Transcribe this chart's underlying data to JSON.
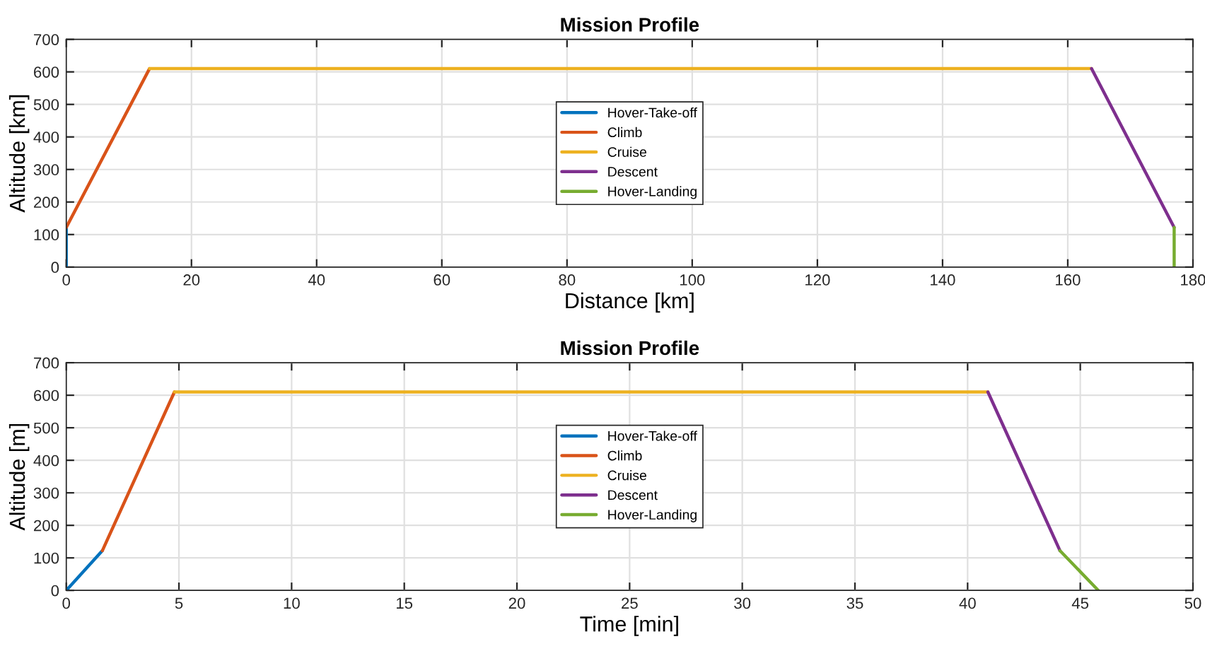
{
  "chart_data": [
    {
      "type": "line",
      "title": "Mission Profile",
      "xlabel": "Distance [km]",
      "ylabel": "Altitude [km]",
      "xlim": [
        0,
        180
      ],
      "xticks": [
        0,
        20,
        40,
        60,
        80,
        100,
        120,
        140,
        160,
        180
      ],
      "ylim": [
        0,
        700
      ],
      "yticks": [
        0,
        100,
        200,
        300,
        400,
        500,
        600,
        700
      ],
      "grid": true,
      "legend": "center",
      "series": [
        {
          "name": "Hover-Take-off",
          "color": "#0072bd",
          "x": [
            0,
            0
          ],
          "values": [
            0,
            122
          ]
        },
        {
          "name": "Climb",
          "color": "#d95319",
          "x": [
            0,
            13.3
          ],
          "values": [
            122,
            610
          ]
        },
        {
          "name": "Cruise",
          "color": "#edb120",
          "x": [
            13.3,
            163.8
          ],
          "values": [
            610,
            610
          ]
        },
        {
          "name": "Descent",
          "color": "#7e2f8e",
          "x": [
            163.8,
            177
          ],
          "values": [
            610,
            122
          ]
        },
        {
          "name": "Hover-Landing",
          "color": "#77ac30",
          "x": [
            177,
            177
          ],
          "values": [
            122,
            0
          ]
        }
      ]
    },
    {
      "type": "line",
      "title": "Mission Profile",
      "xlabel": "Time [min]",
      "ylabel": "Altitude [m]",
      "xlim": [
        0,
        50
      ],
      "xticks": [
        0,
        5,
        10,
        15,
        20,
        25,
        30,
        35,
        40,
        45,
        50
      ],
      "ylim": [
        0,
        700
      ],
      "yticks": [
        0,
        100,
        200,
        300,
        400,
        500,
        600,
        700
      ],
      "grid": true,
      "legend": "center",
      "series": [
        {
          "name": "Hover-Take-off",
          "color": "#0072bd",
          "x": [
            0,
            1.6
          ],
          "values": [
            0,
            122
          ]
        },
        {
          "name": "Climb",
          "color": "#d95319",
          "x": [
            1.6,
            4.8
          ],
          "values": [
            122,
            610
          ]
        },
        {
          "name": "Cruise",
          "color": "#edb120",
          "x": [
            4.8,
            40.9
          ],
          "values": [
            610,
            610
          ]
        },
        {
          "name": "Descent",
          "color": "#7e2f8e",
          "x": [
            40.9,
            44.1
          ],
          "values": [
            610,
            122
          ]
        },
        {
          "name": "Hover-Landing",
          "color": "#77ac30",
          "x": [
            44.1,
            45.8
          ],
          "values": [
            122,
            0
          ]
        }
      ]
    }
  ]
}
